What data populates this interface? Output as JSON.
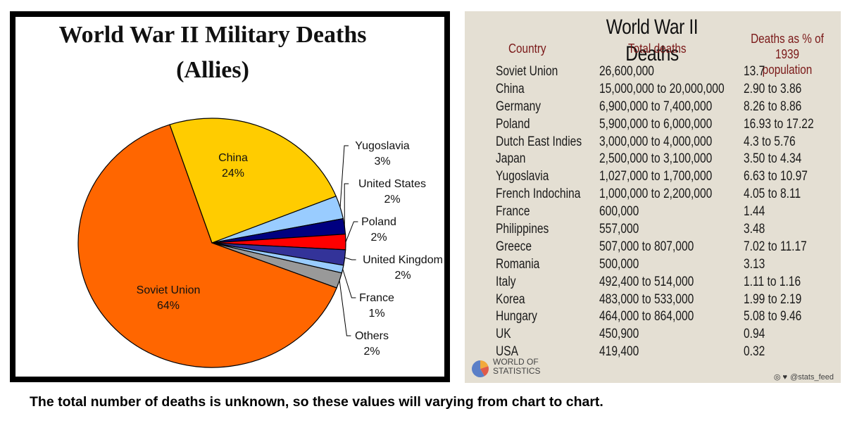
{
  "chart_data": [
    {
      "type": "pie",
      "title": "World War II Military Deaths",
      "subtitle": "(Allies)",
      "slices": [
        {
          "label": "Soviet Union",
          "value_label": "64%",
          "value": 64,
          "color": "#ff6600"
        },
        {
          "label": "China",
          "value_label": "24%",
          "value": 24,
          "color": "#ffcc00"
        },
        {
          "label": "Yugoslavia",
          "value_label": "3%",
          "value": 3,
          "color": "#99ccff"
        },
        {
          "label": "United States",
          "value_label": "2%",
          "value": 2,
          "color": "#000080"
        },
        {
          "label": "Poland",
          "value_label": "2%",
          "value": 2,
          "color": "#ff0000"
        },
        {
          "label": "United Kingdom",
          "value_label": "2%",
          "value": 2,
          "color": "#333399"
        },
        {
          "label": "France",
          "value_label": "1%",
          "value": 1,
          "color": "#99ccff"
        },
        {
          "label": "Others",
          "value_label": "2%",
          "value": 2,
          "color": "#999999"
        }
      ]
    },
    {
      "type": "table",
      "title": "World War II Deaths",
      "columns": [
        "Country",
        "Total deaths",
        "Deaths as % of 1939 population"
      ],
      "rows": [
        [
          "Soviet Union",
          "26,600,000",
          "13.7"
        ],
        [
          "China",
          "15,000,000 to 20,000,000",
          "2.90 to 3.86"
        ],
        [
          "Germany",
          "6,900,000 to 7,400,000",
          "8.26 to 8.86"
        ],
        [
          "Poland",
          "5,900,000 to 6,000,000",
          "16.93 to 17.22"
        ],
        [
          "Dutch East Indies",
          "3,000,000 to 4,000,000",
          "4.3 to 5.76"
        ],
        [
          "Japan",
          "2,500,000 to 3,100,000",
          "3.50 to 4.34"
        ],
        [
          "Yugoslavia",
          "1,027,000 to 1,700,000",
          "6.63 to 10.97"
        ],
        [
          "French Indochina",
          "1,000,000 to 2,200,000",
          "4.05 to 8.11"
        ],
        [
          "France",
          "600,000",
          "1.44"
        ],
        [
          "Philippines",
          "557,000",
          "3.48"
        ],
        [
          "Greece",
          "507,000 to 807,000",
          "7.02 to 11.17"
        ],
        [
          "Romania",
          "500,000",
          "3.13"
        ],
        [
          "Italy",
          "492,400 to 514,000",
          "1.11 to 1.16"
        ],
        [
          "Korea",
          "483,000 to 533,000",
          "1.99 to 2.19"
        ],
        [
          "Hungary",
          "464,000 to 864,000",
          "5.08 to 9.46"
        ],
        [
          "UK",
          "450,900",
          "0.94"
        ],
        [
          "USA",
          "419,400",
          "0.32"
        ]
      ]
    }
  ],
  "table_header": {
    "country": "Country",
    "total": "Total deaths",
    "pct_line1": "Deaths as % of",
    "pct_line2": "1939 population"
  },
  "branding": {
    "logo_line1": "WORLD OF",
    "logo_line2": "STATISTICS",
    "handle": "@stats_feed",
    "social_icons": "◎ ♥",
    "logo_icon": "pie-logo-icon"
  },
  "caption": "The total number of deaths is unknown, so these values will varying from chart to chart."
}
